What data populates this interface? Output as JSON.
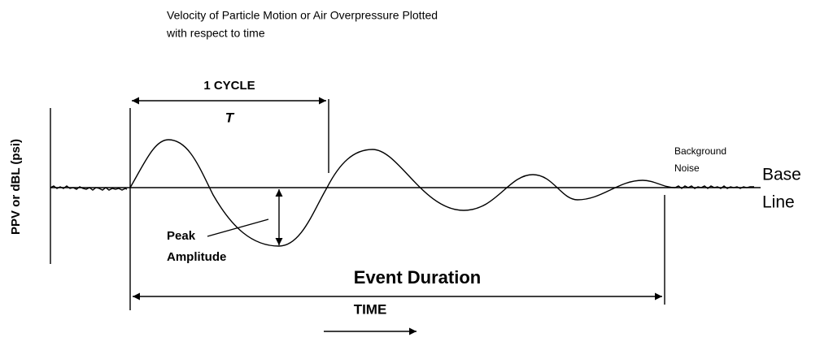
{
  "title": [
    "Velocity of Particle Motion or Air Overpressure Plotted",
    "with respect to time"
  ],
  "y_axis_label": "PPV or dBL (psi)",
  "cycle": {
    "label": "1 CYCLE",
    "symbol": "T"
  },
  "peak_amplitude": [
    "Peak",
    "Amplitude"
  ],
  "event_duration": "Event Duration",
  "background_noise": [
    "Background",
    "Noise"
  ],
  "base_line": [
    "Base",
    "Line"
  ],
  "time": "TIME"
}
